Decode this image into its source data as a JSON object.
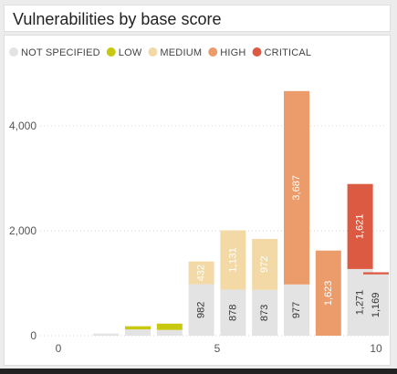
{
  "chart_data": {
    "type": "bar",
    "stacked": true,
    "title": "Vulnerabilities by base score",
    "xlabel": "",
    "ylabel": "",
    "x": [
      0.5,
      1,
      1.5,
      2,
      2.5,
      3,
      3.5,
      4,
      4.5,
      5,
      5.5,
      6,
      6.5,
      7,
      7.5,
      8,
      8.5,
      9,
      9.5,
      10
    ],
    "xlim": [
      0,
      10
    ],
    "x_ticks": [
      "0",
      "5",
      "10"
    ],
    "ylim": [
      0,
      5000
    ],
    "y_ticks": [
      "0",
      "2,000",
      "4,000"
    ],
    "grid": true,
    "legend_position": "top-left",
    "series": [
      {
        "name": "NOT SPECIFIED",
        "color": "#e3e3e3",
        "values": [
          0,
          0,
          40,
          0,
          120,
          0,
          110,
          0,
          982,
          0,
          878,
          0,
          873,
          0,
          977,
          0,
          0,
          0,
          1271,
          1169
        ]
      },
      {
        "name": "LOW",
        "color": "#c8c80e",
        "values": [
          0,
          0,
          0,
          0,
          60,
          0,
          120,
          0,
          0,
          0,
          0,
          0,
          0,
          0,
          0,
          0,
          0,
          0,
          0,
          0
        ]
      },
      {
        "name": "MEDIUM",
        "color": "#f2d9a6",
        "values": [
          0,
          0,
          0,
          0,
          0,
          0,
          0,
          0,
          432,
          0,
          1131,
          0,
          972,
          0,
          0,
          0,
          0,
          0,
          0,
          0
        ]
      },
      {
        "name": "HIGH",
        "color": "#eb9c6a",
        "values": [
          0,
          0,
          0,
          0,
          0,
          0,
          0,
          0,
          0,
          0,
          0,
          0,
          0,
          0,
          3687,
          0,
          1623,
          0,
          0,
          0
        ]
      },
      {
        "name": "CRITICAL",
        "color": "#dd5a42",
        "values": [
          0,
          0,
          0,
          0,
          0,
          0,
          0,
          0,
          0,
          0,
          0,
          0,
          0,
          0,
          0,
          0,
          0,
          0,
          1621,
          40
        ]
      }
    ],
    "data_labels": [
      {
        "x": 4.5,
        "series": "NOT SPECIFIED",
        "text": "982"
      },
      {
        "x": 4.5,
        "series": "MEDIUM",
        "text": "432"
      },
      {
        "x": 5.5,
        "series": "NOT SPECIFIED",
        "text": "878"
      },
      {
        "x": 5.5,
        "series": "MEDIUM",
        "text": "1,131"
      },
      {
        "x": 6.5,
        "series": "NOT SPECIFIED",
        "text": "873"
      },
      {
        "x": 6.5,
        "series": "MEDIUM",
        "text": "972"
      },
      {
        "x": 7.5,
        "series": "NOT SPECIFIED",
        "text": "977"
      },
      {
        "x": 7.5,
        "series": "HIGH",
        "text": "3,687"
      },
      {
        "x": 8.5,
        "series": "HIGH",
        "text": "1,623"
      },
      {
        "x": 9.5,
        "series": "NOT SPECIFIED",
        "text": "1,271"
      },
      {
        "x": 9.5,
        "series": "CRITICAL",
        "text": "1,621"
      },
      {
        "x": 10,
        "series": "NOT SPECIFIED",
        "text": "1,169"
      }
    ]
  }
}
